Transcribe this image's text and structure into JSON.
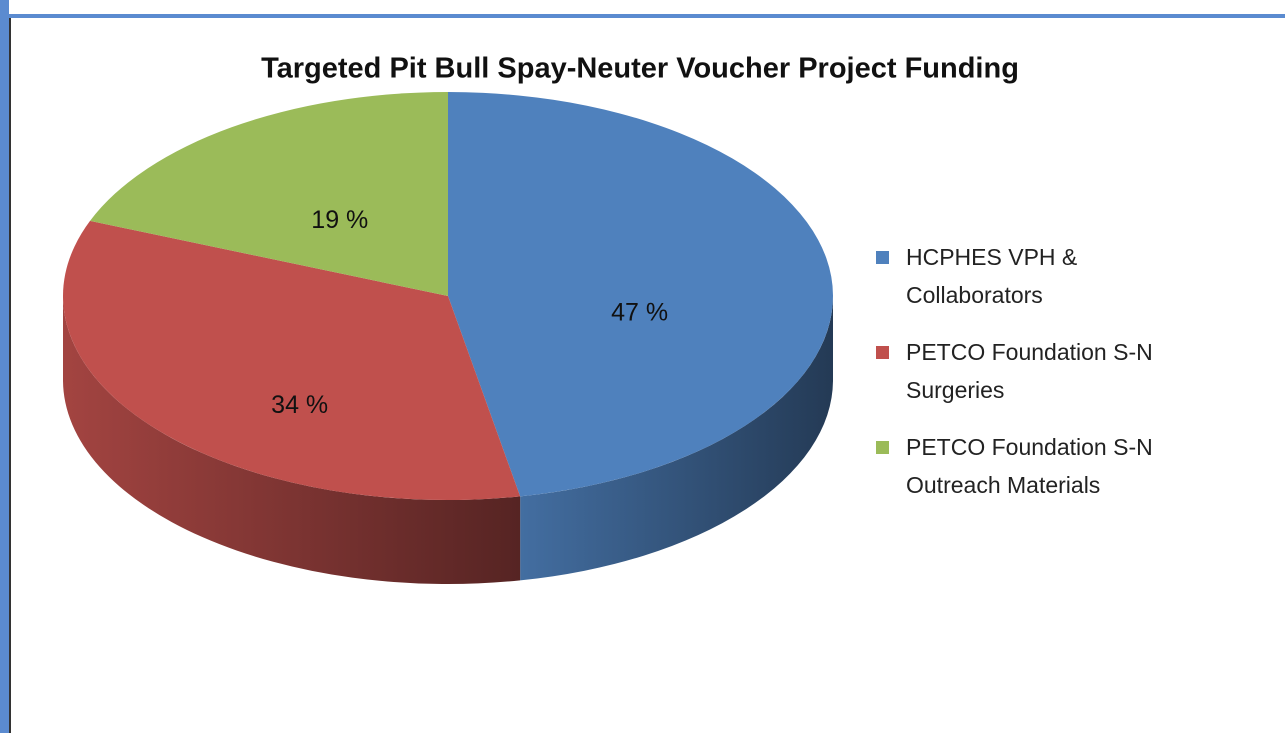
{
  "chart_data": {
    "type": "pie",
    "title": "Targeted Pit Bull Spay-Neuter Voucher Project Funding",
    "categories": [
      "HCPHES VPH & Collaborators",
      "PETCO Foundation S-N Surgeries",
      "PETCO Foundation S-N Outreach Materials"
    ],
    "values": [
      47,
      34,
      19
    ],
    "value_labels": [
      "47 %",
      "34 %",
      "19 %"
    ],
    "colors": [
      "#4f81bd",
      "#c0504d",
      "#9bbb59"
    ],
    "legend": "right"
  }
}
